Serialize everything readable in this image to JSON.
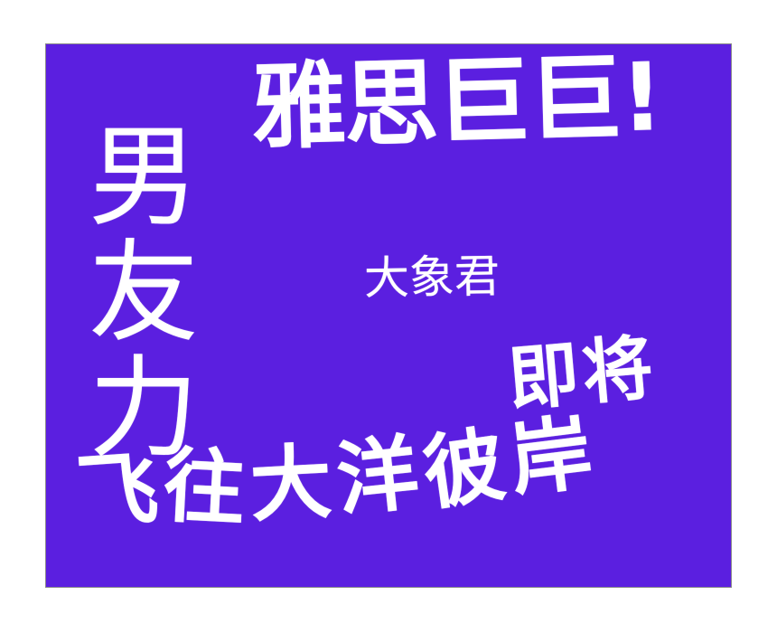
{
  "colors": {
    "page_background": "#ffffff",
    "poster_background": "#5b1fe0",
    "text": "#ffffff",
    "border": "#8a8a8a"
  },
  "poster": {
    "headline": "雅思巨巨!",
    "vertical_chars": [
      "男",
      "友",
      "力"
    ],
    "name": "大象君",
    "soon": "即将",
    "tagline_chars": [
      "飞",
      "往",
      "大",
      "洋",
      "彼",
      "岸"
    ]
  }
}
